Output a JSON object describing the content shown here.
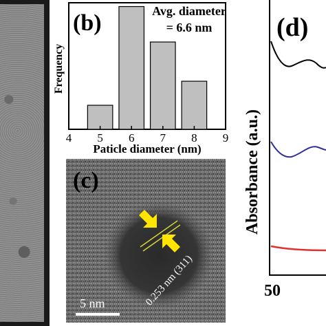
{
  "chart_data": [
    {
      "type": "bar",
      "panel_label": "(b)",
      "annotation_line1": "Avg. diameter",
      "annotation_line2": "= 6.6 nm",
      "xlabel": "Paticle diameter (nm)",
      "ylabel": "Frequency",
      "xlim": [
        4,
        9
      ],
      "xticks": [
        "4",
        "5",
        "6",
        "7",
        "8",
        "9"
      ],
      "ylim": [
        0,
        1.0
      ],
      "bar_color": "#bfbfbf",
      "categories": [
        "5",
        "6",
        "7",
        "8"
      ],
      "x": [
        5,
        6,
        7,
        8
      ],
      "values": [
        0.19,
        0.97,
        0.69,
        0.38
      ]
    },
    {
      "type": "line",
      "panel_label": "(d)",
      "ylabel": "Absorbance (a.u.)",
      "xticks": [
        "250"
      ],
      "series": [
        {
          "color": "#000000"
        },
        {
          "color": "#2e2e99"
        },
        {
          "color": "#e03030"
        }
      ]
    }
  ],
  "panel_c": {
    "label": "(c)",
    "spacing": "0.253 nm (311)",
    "scale_bar": "5 nm"
  }
}
